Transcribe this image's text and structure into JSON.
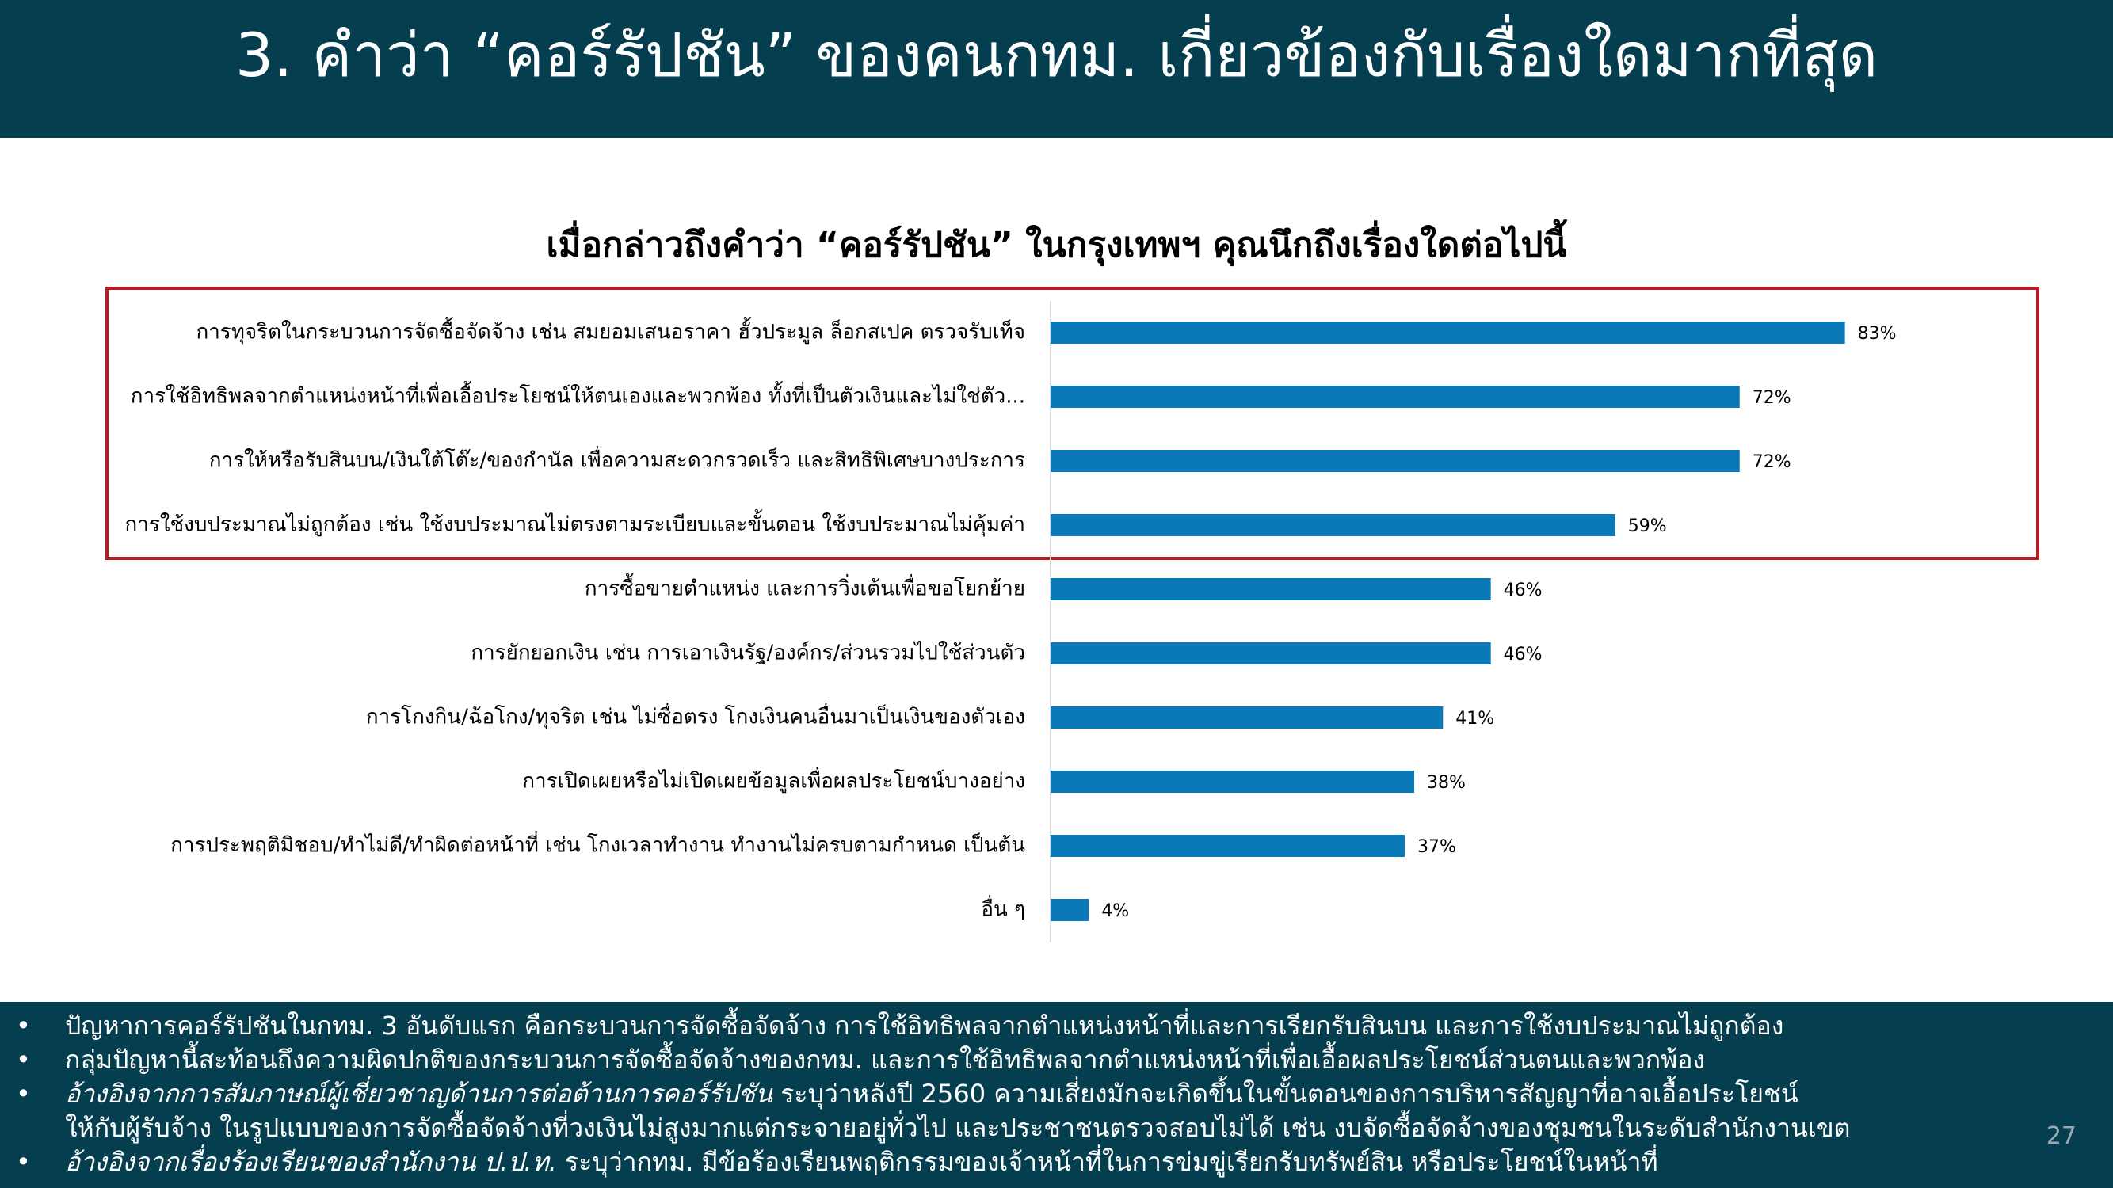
{
  "slide": {
    "title": "3. คำว่า “คอร์รัปชัน” ของคนกทม. เกี่ยวข้องกับเรื่องใดมากที่สุด",
    "page_number": "27"
  },
  "colors": {
    "header_bg": "#053e4e",
    "bar": "#0b78b8",
    "highlight_border": "#b31d24"
  },
  "chart_data": {
    "type": "bar",
    "orientation": "horizontal",
    "title": "เมื่อกล่าวถึงคำว่า “คอร์รัปชัน” ในกรุงเทพฯ คุณนึกถึงเรื่องใดต่อไปนี้",
    "categories": [
      "การทุจริตในกระบวนการจัดซื้อจัดจ้าง เช่น สมยอมเสนอราคา ฮั้วประมูล ล็อกสเปค ตรวจรับเท็จ",
      "การใช้อิทธิพลจากตำแหน่งหน้าที่เพื่อเอื้อประโยชน์ให้ตนเองและพวกพ้อง ทั้งที่เป็นตัวเงินและไม่ใช่ตัว...",
      "การให้หรือรับสินบน/เงินใต้โต๊ะ/ของกำนัล เพื่อความสะดวกรวดเร็ว และสิทธิพิเศษบางประการ",
      "การใช้งบประมาณไม่ถูกต้อง เช่น ใช้งบประมาณไม่ตรงตามระเบียบและขั้นตอน ใช้งบประมาณไม่คุ้มค่า",
      "การซื้อขายตำแหน่ง และการวิ่งเต้นเพื่อขอโยกย้าย",
      "การยักยอกเงิน เช่น การเอาเงินรัฐ/องค์กร/ส่วนรวมไปใช้ส่วนตัว",
      "การโกงกิน/ฉ้อโกง/ทุจริต เช่น ไม่ซื่อตรง โกงเงินคนอื่นมาเป็นเงินของตัวเอง",
      "การเปิดเผยหรือไม่เปิดเผยข้อมูลเพื่อผลประโยชน์บางอย่าง",
      "การประพฤติมิชอบ/ทำไม่ดี/ทำผิดต่อหน้าที่ เช่น โกงเวลาทำงาน  ทำงานไม่ครบตามกำหนด เป็นต้น",
      "อื่น ๆ"
    ],
    "values": [
      83,
      72,
      72,
      59,
      46,
      46,
      41,
      38,
      37,
      4
    ],
    "value_labels": [
      "83%",
      "72%",
      "72%",
      "59%",
      "46%",
      "46%",
      "41%",
      "38%",
      "37%",
      "4%"
    ],
    "xlim": [
      0,
      100
    ],
    "unit": "%",
    "grid": false,
    "legend": "none",
    "highlighted_top_n": 4
  },
  "footer": {
    "bullets": [
      {
        "plain": "ปัญหาการคอร์รัปชันในกทม. 3 อันดับแรก คือกระบวนการจัดซื้อจัดจ้าง การใช้อิทธิพลจากตำแหน่งหน้าที่และการเรียกรับสินบน และการใช้งบประมาณไม่ถูกต้อง"
      },
      {
        "plain": "กลุ่มปัญหานี้สะท้อนถึงความผิดปกติของกระบวนการจัดซื้อจัดจ้างของกทม. และการใช้อิทธิพลจากตำแหน่งหน้าที่เพื่อเอื้อผลประโยชน์ส่วนตนและพวกพ้อง"
      },
      {
        "italic": "อ้างอิงจากการสัมภาษณ์ผู้เชี่ยวชาญด้านการต่อต้านการคอร์รัปชัน",
        "plain": " ระบุว่าหลังปี 2560 ความเสี่ยงมักจะเกิดขึ้นในขั้นตอนของการบริหารสัญญาที่อาจเอื้อประโยชน์",
        "continuation": "ให้กับผู้รับจ้าง ในรูปแบบของการจัดซื้อจัดจ้างที่วงเงินไม่สูงมากแต่กระจายอยู่ทั่วไป และประชาชนตรวจสอบไม่ได้ เช่น งบจัดซื้อจัดจ้างของชุมชนในระดับสำนักงานเขต"
      },
      {
        "italic": "อ้างอิงจากเรื่องร้องเรียนของสำนักงาน ป.ป.ท.",
        "plain": " ระบุว่ากทม. มีข้อร้องเรียนพฤติกรรมของเจ้าหน้าที่ในการข่มขู่เรียกรับทรัพย์สิน หรือประโยชน์ในหน้าที่"
      }
    ]
  }
}
